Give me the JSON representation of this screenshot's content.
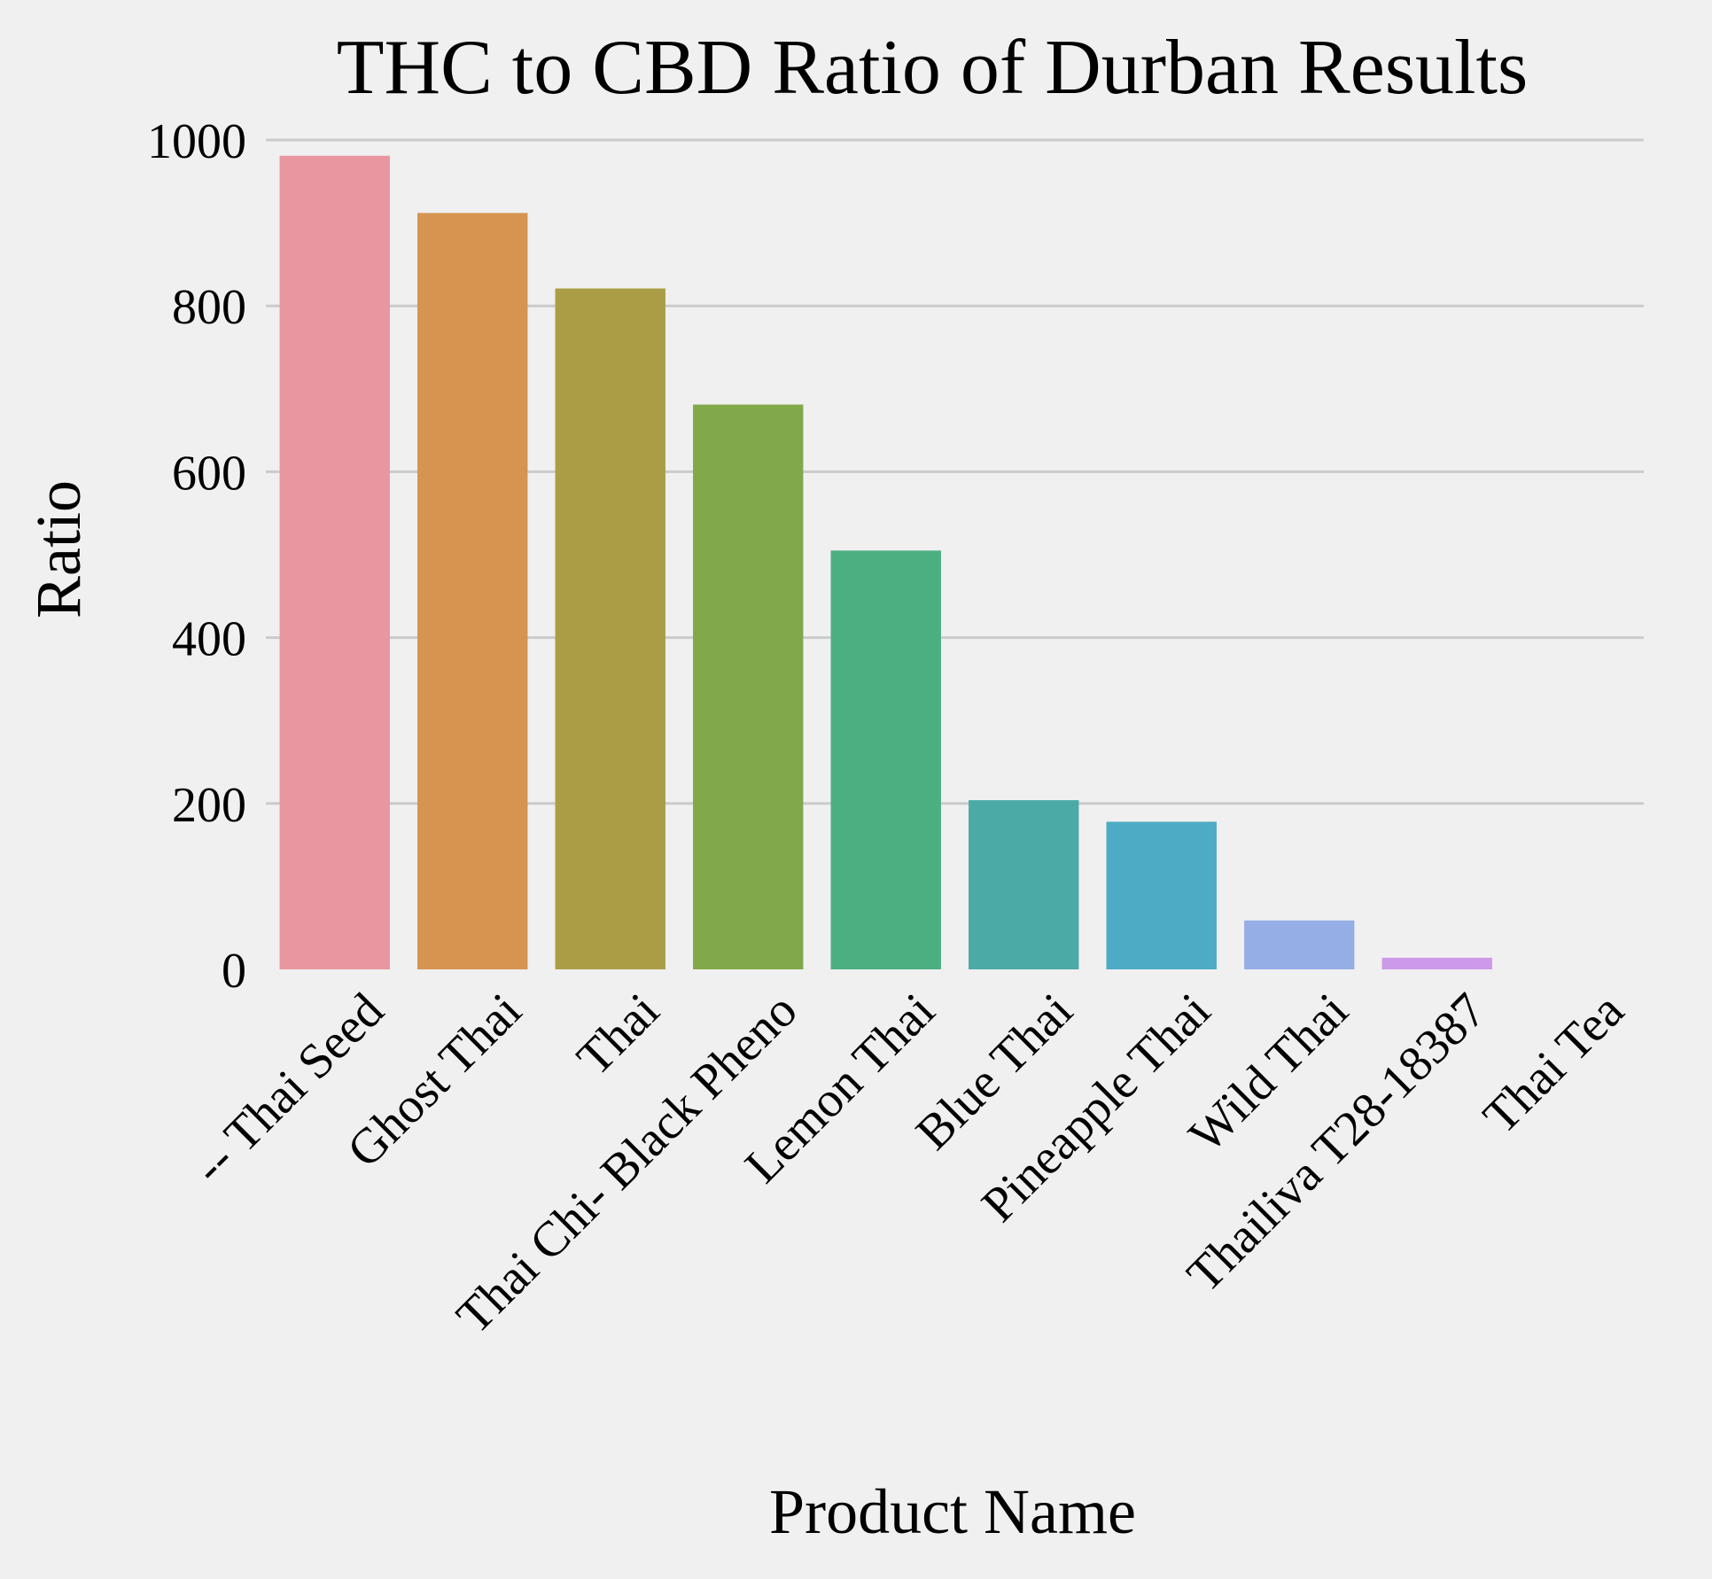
{
  "chart_data": {
    "type": "bar",
    "title": "THC to CBD Ratio of Durban Results",
    "xlabel": "Product Name",
    "ylabel": "Ratio",
    "ylim": [
      0,
      1000
    ],
    "yticks": [
      0,
      200,
      400,
      600,
      800,
      1000
    ],
    "grid": true,
    "categories": [
      "-- Thai Seed",
      "Ghost Thai",
      "Thai",
      "Thai Chi- Black Pheno",
      "Lemon Thai",
      "Blue Thai",
      "Pineapple Thai",
      "Wild Thai",
      "Thailiva T28-18387",
      "Thai Tea"
    ],
    "values": [
      981,
      912,
      821,
      681,
      505,
      204,
      178,
      59,
      14,
      0
    ],
    "colors": [
      "#e8969f",
      "#d69450",
      "#a99e46",
      "#81a849",
      "#4baf81",
      "#4baaa6",
      "#4dabc5",
      "#95aee6",
      "#cc9ae8",
      "#e58dc4"
    ]
  }
}
